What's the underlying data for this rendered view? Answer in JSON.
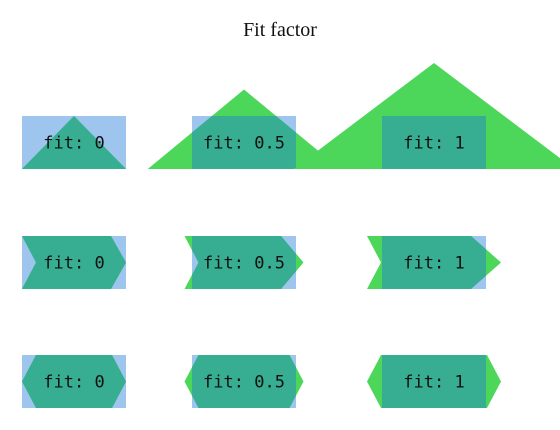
{
  "figure": {
    "title": "Fit factor"
  },
  "colors": {
    "box": "#9dc5ee",
    "shape": "#4cd65a",
    "overlap": "#37ae92",
    "text": "#111111"
  },
  "rows": [
    {
      "shape": "triangle",
      "cells": [
        {
          "label": "fit: 0",
          "fit": 0
        },
        {
          "label": "fit: 0.5",
          "fit": 0.5
        },
        {
          "label": "fit: 1",
          "fit": 1
        }
      ]
    },
    {
      "shape": "chevron",
      "cells": [
        {
          "label": "fit: 0",
          "fit": 0
        },
        {
          "label": "fit: 0.5",
          "fit": 0.5
        },
        {
          "label": "fit: 1",
          "fit": 1
        }
      ]
    },
    {
      "shape": "hexagon",
      "cells": [
        {
          "label": "fit: 0",
          "fit": 0
        },
        {
          "label": "fit: 0.5",
          "fit": 0.5
        },
        {
          "label": "fit: 1",
          "fit": 1
        }
      ]
    }
  ]
}
